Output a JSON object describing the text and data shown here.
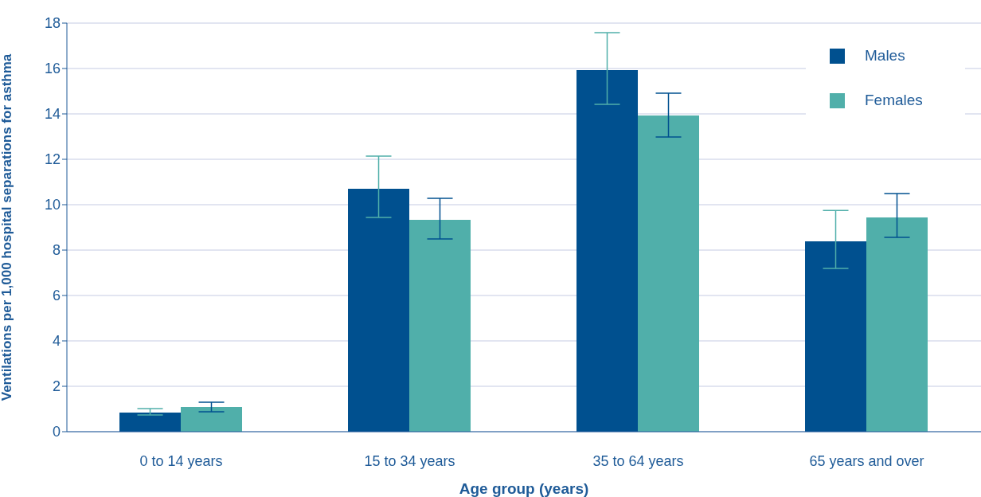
{
  "chart_data": {
    "type": "bar",
    "xlabel": "Age group (years)",
    "ylabel": "Ventilations per 1,000 hospital separations for asthma",
    "categories": [
      "0 to 14 years",
      "15 to 34 years",
      "35 to 64 years",
      "65 years and over"
    ],
    "series": [
      {
        "name": "Males",
        "color": "#00508f",
        "values": [
          0.84,
          10.7,
          15.93,
          8.39
        ],
        "errors": [
          [
            0.74,
            1.02
          ],
          [
            9.44,
            12.14
          ],
          [
            14.42,
            17.58
          ],
          [
            7.19,
            9.75
          ]
        ]
      },
      {
        "name": "Females",
        "color": "#50afaa",
        "values": [
          1.09,
          9.33,
          13.93,
          9.44
        ],
        "errors": [
          [
            0.88,
            1.3
          ],
          [
            8.49,
            10.28
          ],
          [
            12.98,
            14.91
          ],
          [
            8.56,
            10.49
          ]
        ]
      }
    ],
    "ylim": [
      0,
      18
    ],
    "yticks": [
      0,
      2,
      4,
      6,
      8,
      10,
      12,
      14,
      16,
      18
    ],
    "grid": "y",
    "legend": "top right"
  }
}
